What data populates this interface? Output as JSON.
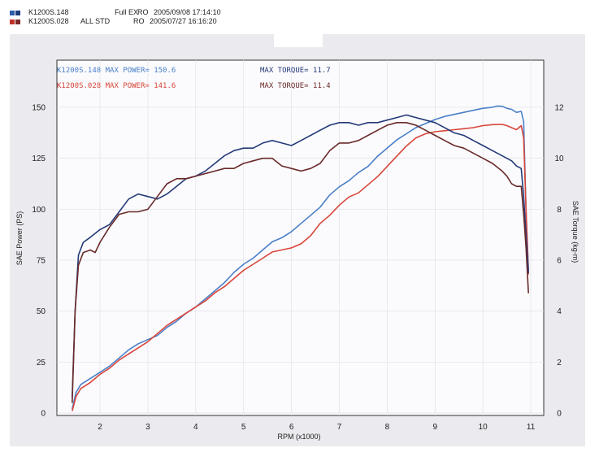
{
  "legend": [
    {
      "name": "K1200S.148",
      "config": "Full EX",
      "run": "RO",
      "datetime": "2005/09/08 17:14:10",
      "color": "#2a5caa"
    },
    {
      "name": "K1200S.028",
      "config": "ALL STD",
      "run": "RO",
      "datetime": "2005/07/27 16:16:20",
      "color": "#c0302a"
    }
  ],
  "colors": {
    "power_blue": "#4a7fc8",
    "power_red": "#d8453a",
    "torque_blue": "#243a78",
    "torque_red": "#6a2a2a",
    "panel": "#eaeaef",
    "plot": "#fbfbfd"
  },
  "chart_data": {
    "type": "line",
    "xlabel": "RPM (x1000)",
    "ylabel_left": "SAE Power (PS)",
    "ylabel_right": "SAE Torque (kg-m)",
    "xlim": [
      1.2,
      11.3
    ],
    "ylim_left": [
      0,
      160
    ],
    "ylim_right": [
      0,
      12.8
    ],
    "x_ticks": [
      2,
      3,
      4,
      5,
      6,
      7,
      8,
      9,
      10,
      11
    ],
    "y_ticks_left": [
      0,
      25,
      50,
      75,
      100,
      125,
      150
    ],
    "y_ticks_right": [
      0,
      2,
      4,
      6,
      8,
      10,
      12
    ],
    "grid": true,
    "annotations": [
      {
        "text": "K1200S.148  MAX POWER= 150.6",
        "color": "#4a7fc8"
      },
      {
        "text": "MAX TORQUE= 11.7",
        "color": "#243a78"
      },
      {
        "text": "K1200S.028  MAX POWER= 141.6",
        "color": "#d8453a"
      },
      {
        "text": "MAX TORQUE= 11.4",
        "color": "#6a2a2a"
      }
    ],
    "series": [
      {
        "axis": "left",
        "color": "#4a7fc8",
        "points": [
          [
            1.42,
            2
          ],
          [
            1.5,
            10
          ],
          [
            1.6,
            14
          ],
          [
            1.8,
            17
          ],
          [
            2,
            20
          ],
          [
            2.2,
            23
          ],
          [
            2.4,
            27
          ],
          [
            2.6,
            31
          ],
          [
            2.8,
            34
          ],
          [
            3,
            36
          ],
          [
            3.2,
            38
          ],
          [
            3.4,
            42
          ],
          [
            3.6,
            45
          ],
          [
            3.8,
            49
          ],
          [
            4,
            52
          ],
          [
            4.2,
            56
          ],
          [
            4.4,
            60
          ],
          [
            4.6,
            64
          ],
          [
            4.8,
            69
          ],
          [
            5,
            73
          ],
          [
            5.2,
            76
          ],
          [
            5.4,
            80
          ],
          [
            5.6,
            84
          ],
          [
            5.8,
            86
          ],
          [
            6,
            89
          ],
          [
            6.2,
            93
          ],
          [
            6.4,
            97
          ],
          [
            6.6,
            101
          ],
          [
            6.8,
            107
          ],
          [
            7,
            111
          ],
          [
            7.2,
            114
          ],
          [
            7.4,
            118
          ],
          [
            7.6,
            121
          ],
          [
            7.8,
            126
          ],
          [
            8,
            130
          ],
          [
            8.2,
            134
          ],
          [
            8.4,
            137
          ],
          [
            8.6,
            140
          ],
          [
            8.8,
            142
          ],
          [
            9,
            144
          ],
          [
            9.2,
            145.5
          ],
          [
            9.4,
            146.5
          ],
          [
            9.6,
            147.5
          ],
          [
            9.8,
            148.5
          ],
          [
            10,
            149.5
          ],
          [
            10.2,
            150
          ],
          [
            10.3,
            150.6
          ],
          [
            10.4,
            150.5
          ],
          [
            10.5,
            149.5
          ],
          [
            10.6,
            149
          ],
          [
            10.7,
            147.5
          ],
          [
            10.8,
            148
          ],
          [
            10.85,
            143
          ],
          [
            10.9,
            100
          ],
          [
            10.95,
            70
          ]
        ]
      },
      {
        "axis": "left",
        "color": "#d8453a",
        "points": [
          [
            1.42,
            1
          ],
          [
            1.5,
            8
          ],
          [
            1.6,
            12
          ],
          [
            1.8,
            15
          ],
          [
            2,
            19
          ],
          [
            2.2,
            22
          ],
          [
            2.4,
            26
          ],
          [
            2.6,
            29
          ],
          [
            2.8,
            32
          ],
          [
            3,
            35
          ],
          [
            3.2,
            39
          ],
          [
            3.4,
            43
          ],
          [
            3.6,
            46
          ],
          [
            3.8,
            49
          ],
          [
            4,
            52
          ],
          [
            4.2,
            55
          ],
          [
            4.4,
            59
          ],
          [
            4.6,
            62
          ],
          [
            4.8,
            66
          ],
          [
            5,
            70
          ],
          [
            5.2,
            73
          ],
          [
            5.4,
            76
          ],
          [
            5.6,
            79
          ],
          [
            5.8,
            80
          ],
          [
            6,
            81
          ],
          [
            6.2,
            83
          ],
          [
            6.4,
            87
          ],
          [
            6.6,
            93
          ],
          [
            6.8,
            97
          ],
          [
            7,
            102
          ],
          [
            7.2,
            106
          ],
          [
            7.4,
            108
          ],
          [
            7.6,
            112
          ],
          [
            7.8,
            116
          ],
          [
            8,
            121
          ],
          [
            8.2,
            126
          ],
          [
            8.4,
            131
          ],
          [
            8.6,
            135
          ],
          [
            8.8,
            137
          ],
          [
            9,
            138
          ],
          [
            9.2,
            138.5
          ],
          [
            9.4,
            139
          ],
          [
            9.6,
            139.5
          ],
          [
            9.8,
            140
          ],
          [
            10,
            141
          ],
          [
            10.2,
            141.5
          ],
          [
            10.4,
            141.6
          ],
          [
            10.5,
            141
          ],
          [
            10.6,
            140
          ],
          [
            10.7,
            139
          ],
          [
            10.8,
            141
          ],
          [
            10.85,
            135
          ],
          [
            10.9,
            100
          ],
          [
            10.95,
            68
          ]
        ]
      },
      {
        "axis": "right",
        "color": "#243a78",
        "points": [
          [
            1.42,
            0.6
          ],
          [
            1.48,
            4
          ],
          [
            1.55,
            6.2
          ],
          [
            1.65,
            6.7
          ],
          [
            1.8,
            6.9
          ],
          [
            2,
            7.2
          ],
          [
            2.2,
            7.4
          ],
          [
            2.4,
            7.9
          ],
          [
            2.6,
            8.4
          ],
          [
            2.8,
            8.6
          ],
          [
            3,
            8.5
          ],
          [
            3.2,
            8.4
          ],
          [
            3.4,
            8.6
          ],
          [
            3.6,
            8.9
          ],
          [
            3.8,
            9.2
          ],
          [
            4,
            9.3
          ],
          [
            4.2,
            9.5
          ],
          [
            4.4,
            9.8
          ],
          [
            4.6,
            10.1
          ],
          [
            4.8,
            10.3
          ],
          [
            5,
            10.4
          ],
          [
            5.2,
            10.4
          ],
          [
            5.4,
            10.6
          ],
          [
            5.6,
            10.7
          ],
          [
            5.8,
            10.6
          ],
          [
            6,
            10.5
          ],
          [
            6.2,
            10.7
          ],
          [
            6.4,
            10.9
          ],
          [
            6.6,
            11.1
          ],
          [
            6.8,
            11.3
          ],
          [
            7,
            11.4
          ],
          [
            7.2,
            11.4
          ],
          [
            7.4,
            11.3
          ],
          [
            7.6,
            11.4
          ],
          [
            7.8,
            11.4
          ],
          [
            8,
            11.5
          ],
          [
            8.2,
            11.6
          ],
          [
            8.4,
            11.7
          ],
          [
            8.6,
            11.6
          ],
          [
            8.8,
            11.5
          ],
          [
            9,
            11.4
          ],
          [
            9.2,
            11.2
          ],
          [
            9.4,
            11
          ],
          [
            9.6,
            10.9
          ],
          [
            9.8,
            10.7
          ],
          [
            10,
            10.5
          ],
          [
            10.2,
            10.3
          ],
          [
            10.4,
            10.1
          ],
          [
            10.5,
            10
          ],
          [
            10.6,
            9.9
          ],
          [
            10.7,
            9.7
          ],
          [
            10.8,
            9.6
          ],
          [
            10.85,
            8.5
          ],
          [
            10.9,
            7
          ],
          [
            10.95,
            5.5
          ]
        ]
      },
      {
        "axis": "right",
        "color": "#6a2a2a",
        "points": [
          [
            1.42,
            0.4
          ],
          [
            1.48,
            4
          ],
          [
            1.55,
            5.8
          ],
          [
            1.65,
            6.3
          ],
          [
            1.8,
            6.4
          ],
          [
            1.9,
            6.3
          ],
          [
            2,
            6.7
          ],
          [
            2.2,
            7.3
          ],
          [
            2.4,
            7.8
          ],
          [
            2.6,
            7.9
          ],
          [
            2.8,
            7.9
          ],
          [
            3,
            8
          ],
          [
            3.2,
            8.5
          ],
          [
            3.4,
            9
          ],
          [
            3.6,
            9.2
          ],
          [
            3.8,
            9.2
          ],
          [
            4,
            9.3
          ],
          [
            4.2,
            9.4
          ],
          [
            4.4,
            9.5
          ],
          [
            4.6,
            9.6
          ],
          [
            4.8,
            9.6
          ],
          [
            5,
            9.8
          ],
          [
            5.2,
            9.9
          ],
          [
            5.4,
            10
          ],
          [
            5.6,
            10
          ],
          [
            5.8,
            9.7
          ],
          [
            6,
            9.6
          ],
          [
            6.2,
            9.5
          ],
          [
            6.4,
            9.6
          ],
          [
            6.6,
            9.8
          ],
          [
            6.8,
            10.3
          ],
          [
            7,
            10.6
          ],
          [
            7.2,
            10.6
          ],
          [
            7.4,
            10.7
          ],
          [
            7.6,
            10.9
          ],
          [
            7.8,
            11.1
          ],
          [
            8,
            11.3
          ],
          [
            8.2,
            11.4
          ],
          [
            8.4,
            11.4
          ],
          [
            8.6,
            11.3
          ],
          [
            8.8,
            11.1
          ],
          [
            9,
            10.9
          ],
          [
            9.2,
            10.7
          ],
          [
            9.4,
            10.5
          ],
          [
            9.6,
            10.4
          ],
          [
            9.8,
            10.2
          ],
          [
            10,
            10
          ],
          [
            10.2,
            9.8
          ],
          [
            10.4,
            9.5
          ],
          [
            10.5,
            9.3
          ],
          [
            10.6,
            9
          ],
          [
            10.7,
            8.9
          ],
          [
            10.8,
            8.9
          ],
          [
            10.85,
            7.8
          ],
          [
            10.9,
            6.5
          ],
          [
            10.95,
            4.7
          ]
        ]
      }
    ]
  }
}
